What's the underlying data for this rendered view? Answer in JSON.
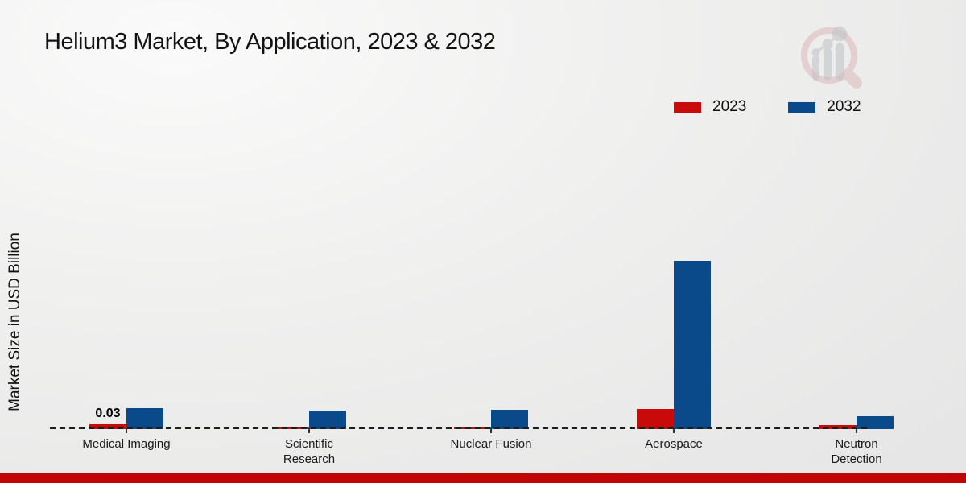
{
  "title": "Helium3 Market, By Application, 2023 & 2032",
  "ylabel": "Market Size in USD Billion",
  "legend": {
    "items": [
      {
        "label": "2023",
        "color": "#c80a0a"
      },
      {
        "label": "2032",
        "color": "#0a4a8b"
      }
    ]
  },
  "colors": {
    "series_2023": "#c80a0a",
    "series_2032": "#0a4a8b",
    "bottom_strip": "#c10505",
    "baseline": "#1c1c1c",
    "background": "#ededec"
  },
  "chart_data": {
    "type": "bar",
    "title": "Helium3 Market, By Application, 2023 & 2032",
    "xlabel": "",
    "ylabel": "Market Size in USD Billion",
    "categories": [
      "Medical Imaging",
      "Scientific Research",
      "Nuclear Fusion",
      "Aerospace",
      "Neutron Detection"
    ],
    "series": [
      {
        "name": "2023",
        "color": "#c80a0a",
        "values": [
          0.03,
          0.015,
          0.01,
          0.125,
          0.025
        ]
      },
      {
        "name": "2032",
        "color": "#0a4a8b",
        "values": [
          0.13,
          0.115,
          0.12,
          1.045,
          0.08
        ]
      }
    ],
    "data_labels": [
      {
        "text": "0.03",
        "category_index": 0,
        "series_index": 0
      }
    ],
    "ylim": [
      0,
      1.1
    ],
    "grid": false,
    "axis_line_style": "dashed",
    "legend_position": "top-right"
  }
}
